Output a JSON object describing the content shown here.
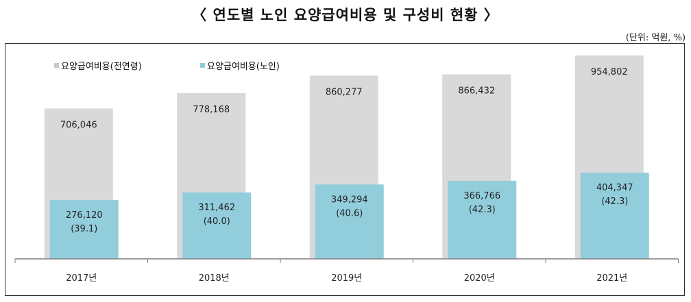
{
  "title": "〈 연도별 노인 요양급여비용 및 구성비 현황 〉",
  "unit": "(단위: 억원, %)",
  "colors": {
    "total": "#d9d9d9",
    "elderly": "#92cddc",
    "axis": "#7f7f7f"
  },
  "chart_data": {
    "type": "bar",
    "categories": [
      "2017년",
      "2018년",
      "2019년",
      "2020년",
      "2021년"
    ],
    "series": [
      {
        "name": "요양급여비용(전연령)",
        "values": [
          706046,
          778168,
          860277,
          866432,
          954802
        ],
        "labels": [
          "706,046",
          "778,168",
          "860,277",
          "866,432",
          "954,802"
        ]
      },
      {
        "name": "요양급여비용(노인)",
        "values": [
          276120,
          311462,
          349294,
          366766,
          404347
        ],
        "labels": [
          "276,120",
          "311,462",
          "349,294",
          "366,766",
          "404,347"
        ],
        "ratios": [
          "(39.1)",
          "(40.0)",
          "(40.6)",
          "(42.3)",
          "(42.3)"
        ]
      }
    ],
    "ylim": [
      0,
      1000000
    ],
    "grid": false,
    "legend": "top-left"
  }
}
